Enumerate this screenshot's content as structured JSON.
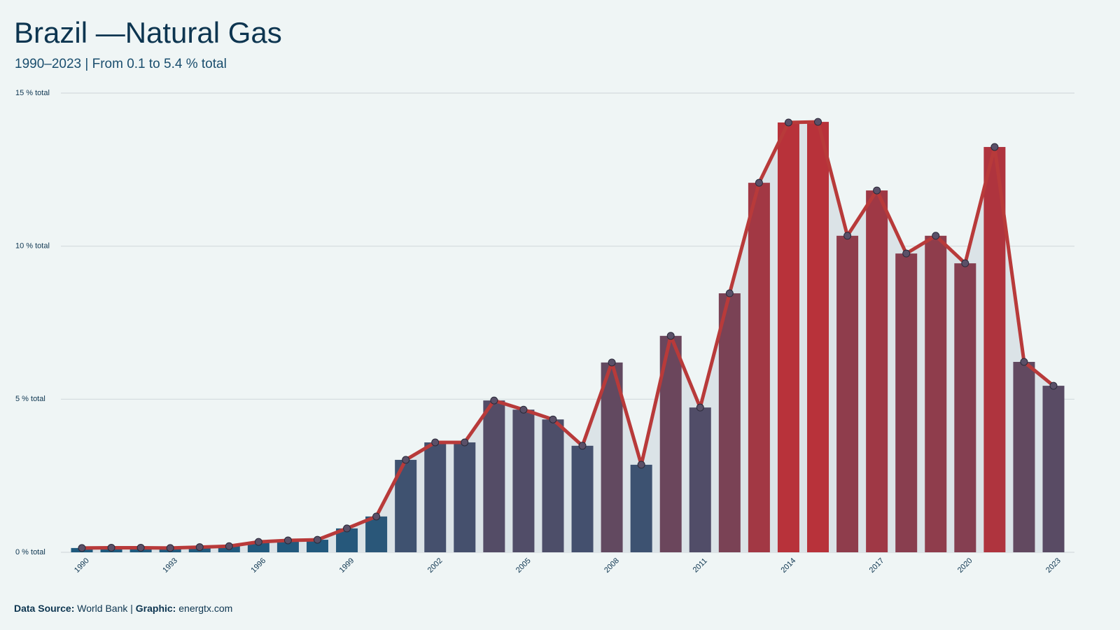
{
  "chart_data": {
    "type": "bar_line",
    "title": "Brazil —Natural Gas",
    "subtitle": "1990–2023 | From 0.1 to 5.4 % total",
    "categories": [
      "1990",
      null,
      null,
      "1993",
      null,
      null,
      "1996",
      null,
      null,
      "1999",
      null,
      null,
      "2002",
      null,
      null,
      "2005",
      null,
      null,
      "2008",
      null,
      null,
      "2011",
      null,
      null,
      "2014",
      null,
      null,
      "2017",
      null,
      null,
      "2020",
      null,
      null,
      "2023"
    ],
    "values": [
      0.14,
      0.15,
      0.15,
      0.14,
      0.17,
      0.2,
      0.34,
      0.39,
      0.41,
      0.78,
      1.17,
      3.02,
      3.59,
      3.59,
      4.96,
      4.66,
      4.34,
      3.48,
      6.2,
      2.86,
      7.07,
      4.73,
      8.46,
      12.07,
      14.04,
      14.06,
      10.34,
      11.82,
      9.76,
      10.34,
      9.44,
      13.24,
      6.22,
      5.44
    ],
    "color_low": "#1f5a7e",
    "color_high": "#b8323a",
    "line_color": "#b83a3a",
    "area_color": "#dbe3e7",
    "marker_color": "#5a5068",
    "ylim": [
      0,
      15
    ],
    "yticks": [
      {
        "value": 0,
        "label": "0 % total"
      },
      {
        "value": 5,
        "label": "5 % total"
      },
      {
        "value": 10,
        "label": "10 % total"
      },
      {
        "value": 15,
        "label": "15 % total"
      }
    ],
    "grid": true,
    "footer": [
      {
        "label": "Data Source:",
        "text": "World Bank"
      },
      {
        "label": "Graphic:",
        "text": "energtx.com"
      }
    ],
    "footer_separator": "|"
  }
}
